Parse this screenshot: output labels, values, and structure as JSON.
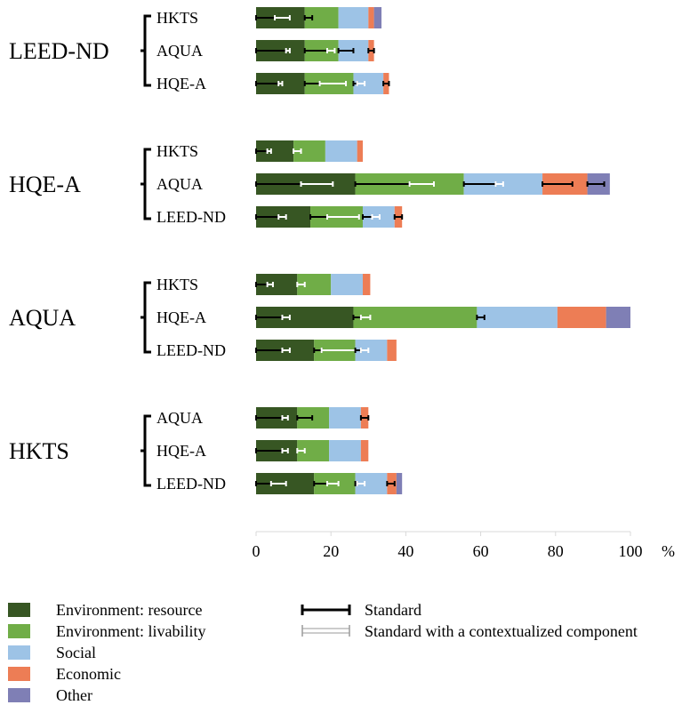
{
  "chart_data": {
    "type": "bar",
    "stacked": true,
    "orientation": "horizontal",
    "unit": "%",
    "xlim": [
      0,
      100
    ],
    "ticks": [
      0,
      20,
      40,
      60,
      80,
      100
    ],
    "series_names": [
      "Environment: resource",
      "Environment: livability",
      "Social",
      "Economic",
      "Other"
    ],
    "colors": {
      "Environment: resource": "#375623",
      "Environment: livability": "#70AD47",
      "Social": "#9DC3E6",
      "Economic": "#ED7D55",
      "Other": "#7F7FB5"
    },
    "error_legend": {
      "standard": "Standard",
      "contextualized": "Standard with a contextualized component"
    },
    "groups": [
      {
        "name": "LEED-ND",
        "bars": [
          {
            "label": "HKTS",
            "values": [
              13,
              9,
              8,
              1.5,
              2
            ],
            "errors": [
              {
                "type": "standard",
                "from": 0,
                "to": 5
              },
              {
                "type": "contextualized",
                "from": 5,
                "to": 9
              },
              {
                "type": "standard",
                "from": 13,
                "to": 15
              }
            ]
          },
          {
            "label": "AQUA",
            "values": [
              13,
              9,
              8,
              1.5,
              0
            ],
            "errors": [
              {
                "type": "standard",
                "from": 0,
                "to": 8
              },
              {
                "type": "contextualized",
                "from": 8,
                "to": 9
              },
              {
                "type": "standard",
                "from": 13,
                "to": 19
              },
              {
                "type": "contextualized",
                "from": 19,
                "to": 21
              },
              {
                "type": "standard",
                "from": 22,
                "to": 26
              },
              {
                "type": "standard",
                "from": 30,
                "to": 31.5
              }
            ]
          },
          {
            "label": "HQE-A",
            "values": [
              13,
              13,
              8,
              1.5,
              0
            ],
            "errors": [
              {
                "type": "standard",
                "from": 0,
                "to": 6
              },
              {
                "type": "contextualized",
                "from": 6,
                "to": 7
              },
              {
                "type": "standard",
                "from": 13,
                "to": 17
              },
              {
                "type": "contextualized",
                "from": 17,
                "to": 24
              },
              {
                "type": "standard",
                "from": 26,
                "to": 27
              },
              {
                "type": "contextualized",
                "from": 27,
                "to": 29
              },
              {
                "type": "standard",
                "from": 34,
                "to": 35.5
              }
            ]
          }
        ]
      },
      {
        "name": "HQE-A",
        "bars": [
          {
            "label": "HKTS",
            "values": [
              10,
              8.5,
              8.5,
              1.5,
              0
            ],
            "errors": [
              {
                "type": "standard",
                "from": 0,
                "to": 3
              },
              {
                "type": "contextualized",
                "from": 3,
                "to": 4
              },
              {
                "type": "contextualized",
                "from": 10,
                "to": 12
              }
            ]
          },
          {
            "label": "AQUA",
            "values": [
              26.5,
              29,
              21,
              12,
              6
            ],
            "errors": [
              {
                "type": "standard",
                "from": 0,
                "to": 12
              },
              {
                "type": "contextualized",
                "from": 12,
                "to": 20.5
              },
              {
                "type": "standard",
                "from": 26.5,
                "to": 41
              },
              {
                "type": "contextualized",
                "from": 41,
                "to": 47.5
              },
              {
                "type": "standard",
                "from": 55.5,
                "to": 64
              },
              {
                "type": "contextualized",
                "from": 64,
                "to": 66
              },
              {
                "type": "standard",
                "from": 76.5,
                "to": 84.5
              },
              {
                "type": "standard",
                "from": 88.5,
                "to": 93
              }
            ]
          },
          {
            "label": "LEED-ND",
            "values": [
              14.5,
              14,
              8.5,
              2,
              0
            ],
            "errors": [
              {
                "type": "standard",
                "from": 0,
                "to": 6
              },
              {
                "type": "contextualized",
                "from": 6,
                "to": 8
              },
              {
                "type": "standard",
                "from": 14.5,
                "to": 19
              },
              {
                "type": "contextualized",
                "from": 19,
                "to": 27.5
              },
              {
                "type": "standard",
                "from": 28.5,
                "to": 31
              },
              {
                "type": "contextualized",
                "from": 31,
                "to": 33
              },
              {
                "type": "standard",
                "from": 37,
                "to": 39
              }
            ]
          }
        ]
      },
      {
        "name": "AQUA",
        "bars": [
          {
            "label": "HKTS",
            "values": [
              11,
              9,
              8.5,
              2,
              0
            ],
            "errors": [
              {
                "type": "standard",
                "from": 0,
                "to": 3
              },
              {
                "type": "contextualized",
                "from": 3,
                "to": 4.5
              },
              {
                "type": "contextualized",
                "from": 11,
                "to": 13
              }
            ]
          },
          {
            "label": "HQE-A",
            "values": [
              26,
              33,
              21.5,
              13,
              6.5
            ],
            "errors": [
              {
                "type": "standard",
                "from": 0,
                "to": 7
              },
              {
                "type": "contextualized",
                "from": 7,
                "to": 9
              },
              {
                "type": "standard",
                "from": 26,
                "to": 28
              },
              {
                "type": "contextualized",
                "from": 28,
                "to": 30.5
              },
              {
                "type": "standard",
                "from": 59,
                "to": 61
              }
            ]
          },
          {
            "label": "LEED-ND",
            "values": [
              15.5,
              11,
              8.5,
              2.5,
              0
            ],
            "errors": [
              {
                "type": "standard",
                "from": 0,
                "to": 7
              },
              {
                "type": "contextualized",
                "from": 7,
                "to": 9
              },
              {
                "type": "standard",
                "from": 15.5,
                "to": 17.5
              },
              {
                "type": "contextualized",
                "from": 17.5,
                "to": 26.5
              },
              {
                "type": "standard",
                "from": 26.5,
                "to": 28
              },
              {
                "type": "contextualized",
                "from": 28,
                "to": 30
              }
            ]
          }
        ]
      },
      {
        "name": "HKTS",
        "bars": [
          {
            "label": "AQUA",
            "values": [
              11,
              8.5,
              8.5,
              2,
              0
            ],
            "errors": [
              {
                "type": "standard",
                "from": 0,
                "to": 7
              },
              {
                "type": "contextualized",
                "from": 7,
                "to": 8.5
              },
              {
                "type": "standard",
                "from": 11,
                "to": 15
              },
              {
                "type": "standard",
                "from": 28,
                "to": 30
              }
            ]
          },
          {
            "label": "HQE-A",
            "values": [
              11,
              8.5,
              8.5,
              2,
              0
            ],
            "errors": [
              {
                "type": "standard",
                "from": 0,
                "to": 7
              },
              {
                "type": "contextualized",
                "from": 7,
                "to": 8.5
              },
              {
                "type": "contextualized",
                "from": 11,
                "to": 13
              }
            ]
          },
          {
            "label": "LEED-ND",
            "values": [
              15.5,
              11,
              8.5,
              2.5,
              1.5
            ],
            "errors": [
              {
                "type": "standard",
                "from": 0,
                "to": 4
              },
              {
                "type": "contextualized",
                "from": 4,
                "to": 8
              },
              {
                "type": "standard",
                "from": 15.5,
                "to": 19
              },
              {
                "type": "contextualized",
                "from": 19,
                "to": 22
              },
              {
                "type": "standard",
                "from": 26.5,
                "to": 27
              },
              {
                "type": "contextualized",
                "from": 27,
                "to": 29
              },
              {
                "type": "standard",
                "from": 35,
                "to": 37
              }
            ]
          }
        ]
      }
    ]
  }
}
